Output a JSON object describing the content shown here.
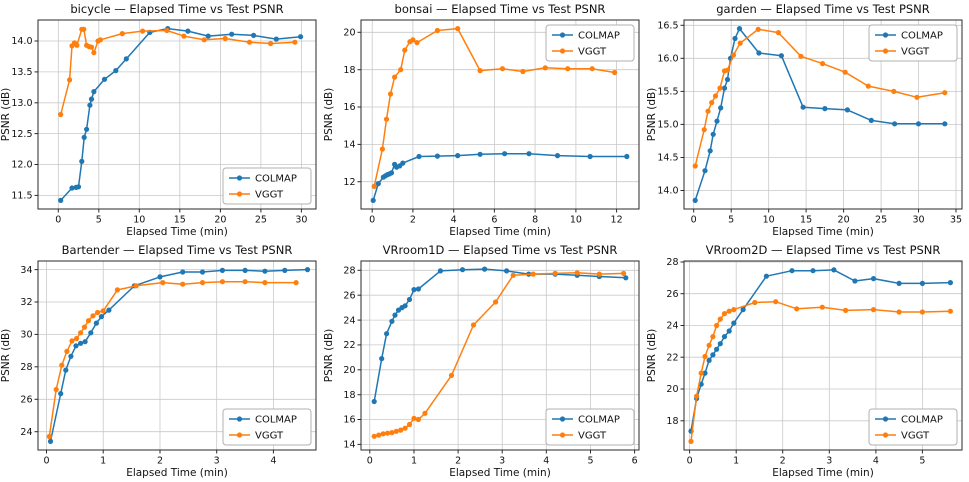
{
  "figure": {
    "background": "#ffffff",
    "grid_color": "#c9c9c9",
    "spine_color": "#2a2a2a",
    "text_color": "#111111",
    "legend_border": "#b0b0b0",
    "legend_bg": "#ffffff",
    "colmap_color": "#1f77b4",
    "vggt_color": "#ff7f0e"
  },
  "chart_data": [
    {
      "type": "line",
      "title": "bicycle — Elapsed Time vs Test PSNR",
      "xlabel": "Elapsed Time (min)",
      "ylabel": "PSNR (dB)",
      "xlim": [
        -2.5,
        31.8
      ],
      "ylim": [
        11.28,
        14.34
      ],
      "xticks": [
        0,
        5,
        10,
        15,
        20,
        25,
        30
      ],
      "xtick_labels": [
        "0",
        "5",
        "10",
        "15",
        "20",
        "25",
        "30"
      ],
      "yticks": [
        11.5,
        12.0,
        12.5,
        13.0,
        13.5,
        14.0
      ],
      "ytick_labels": [
        "11.5",
        "12.0",
        "12.5",
        "13.0",
        "13.5",
        "14.0"
      ],
      "grid": true,
      "legend_position": "lower right",
      "series": [
        {
          "name": "COLMAP",
          "color": "#1f77b4",
          "x": [
            0.3,
            1.7,
            2.2,
            2.5,
            2.9,
            3.2,
            3.5,
            3.9,
            4.1,
            4.4,
            5.7,
            7.1,
            8.4,
            11.3,
            13.5,
            16.0,
            18.5,
            21.4,
            24.1,
            26.9,
            29.9
          ],
          "y": [
            11.42,
            11.62,
            11.63,
            11.64,
            12.05,
            12.44,
            12.57,
            12.96,
            13.06,
            13.18,
            13.38,
            13.52,
            13.71,
            14.14,
            14.2,
            14.16,
            14.08,
            14.11,
            14.09,
            14.03,
            14.07
          ]
        },
        {
          "name": "VGGT",
          "color": "#ff7f0e",
          "x": [
            0.3,
            1.4,
            1.7,
            2.0,
            2.3,
            2.9,
            3.15,
            3.5,
            3.8,
            4.1,
            4.4,
            4.9,
            5.2,
            7.9,
            10.4,
            13.4,
            15.5,
            18.0,
            20.6,
            23.6,
            26.2,
            29.2
          ],
          "y": [
            12.81,
            13.37,
            13.92,
            13.97,
            13.93,
            14.19,
            14.19,
            13.93,
            13.91,
            13.9,
            13.81,
            14.0,
            14.02,
            14.12,
            14.16,
            14.17,
            14.08,
            14.02,
            14.04,
            13.98,
            13.96,
            13.98
          ]
        }
      ]
    },
    {
      "type": "line",
      "title": "bonsai — Elapsed Time vs Test PSNR",
      "xlabel": "Elapsed Time (min)",
      "ylabel": "PSNR (dB)",
      "xlim": [
        -0.55,
        13.1
      ],
      "ylim": [
        10.54,
        20.66
      ],
      "xticks": [
        0,
        2,
        4,
        6,
        8,
        10,
        12
      ],
      "xtick_labels": [
        "0",
        "2",
        "4",
        "6",
        "8",
        "10",
        "12"
      ],
      "yticks": [
        12,
        14,
        16,
        18,
        20
      ],
      "ytick_labels": [
        "12",
        "14",
        "16",
        "18",
        "20"
      ],
      "grid": true,
      "legend_position": "upper right",
      "series": [
        {
          "name": "COLMAP",
          "color": "#1f77b4",
          "x": [
            0.05,
            0.3,
            0.55,
            0.65,
            0.75,
            0.85,
            0.95,
            1.1,
            1.2,
            1.35,
            1.5,
            2.3,
            3.2,
            4.2,
            5.3,
            6.5,
            7.7,
            9.1,
            10.7,
            12.5
          ],
          "y": [
            11.0,
            11.9,
            12.25,
            12.32,
            12.38,
            12.42,
            12.48,
            12.93,
            12.78,
            12.85,
            13.0,
            13.35,
            13.37,
            13.4,
            13.47,
            13.5,
            13.5,
            13.4,
            13.35,
            13.35
          ]
        },
        {
          "name": "VGGT",
          "color": "#ff7f0e",
          "x": [
            0.1,
            0.5,
            0.7,
            0.9,
            1.1,
            1.4,
            1.6,
            1.85,
            2.0,
            2.2,
            3.2,
            4.2,
            5.3,
            6.4,
            7.4,
            8.5,
            9.6,
            10.8,
            11.9
          ],
          "y": [
            11.75,
            13.75,
            15.35,
            16.7,
            17.6,
            18.0,
            19.05,
            19.5,
            19.6,
            19.45,
            20.1,
            20.2,
            17.95,
            18.05,
            17.9,
            18.1,
            18.05,
            18.05,
            17.85
          ]
        }
      ]
    },
    {
      "type": "line",
      "title": "garden — Elapsed Time vs Test PSNR",
      "xlabel": "Elapsed Time (min)",
      "ylabel": "PSNR (dB)",
      "xlim": [
        -1.3,
        35.8
      ],
      "ylim": [
        13.72,
        16.58
      ],
      "xticks": [
        0,
        5,
        10,
        15,
        20,
        25,
        30,
        35
      ],
      "xtick_labels": [
        "0",
        "5",
        "10",
        "15",
        "20",
        "25",
        "30",
        "35"
      ],
      "yticks": [
        14.0,
        14.5,
        15.0,
        15.5,
        16.0,
        16.5
      ],
      "ytick_labels": [
        "14.0",
        "14.5",
        "15.0",
        "15.5",
        "16.0",
        "16.5"
      ],
      "grid": true,
      "legend_position": "upper right",
      "series": [
        {
          "name": "COLMAP",
          "color": "#1f77b4",
          "x": [
            0.2,
            1.5,
            2.2,
            2.6,
            3.1,
            3.6,
            4.1,
            4.5,
            4.9,
            5.5,
            6.1,
            8.7,
            11.7,
            14.6,
            17.5,
            20.5,
            23.7,
            26.8,
            30.0,
            33.5
          ],
          "y": [
            13.85,
            14.3,
            14.6,
            14.85,
            15.05,
            15.25,
            15.55,
            15.68,
            16.0,
            16.3,
            16.45,
            16.08,
            16.04,
            15.26,
            15.24,
            15.22,
            15.06,
            15.01,
            15.01,
            15.01
          ]
        },
        {
          "name": "VGGT",
          "color": "#ff7f0e",
          "x": [
            0.2,
            1.4,
            1.9,
            2.4,
            2.9,
            3.5,
            4.1,
            4.5,
            5.3,
            6.2,
            8.6,
            11.3,
            14.3,
            17.2,
            20.2,
            23.3,
            26.7,
            29.8,
            33.5
          ],
          "y": [
            14.37,
            14.92,
            15.2,
            15.33,
            15.43,
            15.55,
            15.81,
            15.82,
            16.05,
            16.23,
            16.44,
            16.39,
            16.03,
            15.92,
            15.79,
            15.58,
            15.5,
            15.41,
            15.48
          ]
        }
      ]
    },
    {
      "type": "line",
      "title": "Bartender — Elapsed Time vs Test PSNR",
      "xlabel": "Elapsed Time (min)",
      "ylabel": "PSNR (dB)",
      "xlim": [
        -0.15,
        4.75
      ],
      "ylim": [
        22.87,
        34.53
      ],
      "xticks": [
        0,
        1,
        2,
        3,
        4
      ],
      "xtick_labels": [
        "0",
        "1",
        "2",
        "3",
        "4"
      ],
      "yticks": [
        24,
        26,
        28,
        30,
        32,
        34
      ],
      "ytick_labels": [
        "24",
        "26",
        "28",
        "30",
        "32",
        "34"
      ],
      "grid": true,
      "legend_position": "lower right",
      "series": [
        {
          "name": "COLMAP",
          "color": "#1f77b4",
          "x": [
            0.07,
            0.25,
            0.34,
            0.43,
            0.52,
            0.6,
            0.68,
            0.78,
            0.88,
            0.97,
            1.1,
            1.55,
            2.0,
            2.4,
            2.75,
            3.1,
            3.5,
            3.85,
            4.2,
            4.6
          ],
          "y": [
            23.4,
            26.35,
            27.8,
            28.65,
            29.3,
            29.45,
            29.55,
            30.1,
            30.7,
            31.1,
            31.5,
            33.0,
            33.55,
            33.85,
            33.85,
            33.95,
            33.95,
            33.9,
            33.95,
            34.0
          ]
        },
        {
          "name": "VGGT",
          "color": "#ff7f0e",
          "x": [
            0.05,
            0.17,
            0.27,
            0.36,
            0.45,
            0.53,
            0.6,
            0.67,
            0.74,
            0.82,
            0.9,
            1.0,
            1.25,
            1.58,
            2.05,
            2.4,
            2.75,
            3.1,
            3.5,
            3.85,
            4.4
          ],
          "y": [
            23.7,
            26.6,
            28.1,
            28.95,
            29.6,
            29.75,
            30.1,
            30.45,
            30.85,
            31.15,
            31.35,
            31.45,
            32.75,
            33.0,
            33.2,
            33.1,
            33.2,
            33.25,
            33.25,
            33.2,
            33.2
          ]
        }
      ]
    },
    {
      "type": "line",
      "title": "VRroom1D — Elapsed Time vs Test PSNR",
      "xlabel": "Elapsed Time (min)",
      "ylabel": "PSNR (dB)",
      "xlim": [
        -0.2,
        6.1
      ],
      "ylim": [
        13.55,
        28.75
      ],
      "xticks": [
        0,
        1,
        2,
        3,
        4,
        5,
        6
      ],
      "xtick_labels": [
        "0",
        "1",
        "2",
        "3",
        "4",
        "5",
        "6"
      ],
      "yticks": [
        14,
        16,
        18,
        20,
        22,
        24,
        26,
        28
      ],
      "ytick_labels": [
        "14",
        "16",
        "18",
        "20",
        "22",
        "24",
        "26",
        "28"
      ],
      "grid": true,
      "legend_position": "lower right",
      "series": [
        {
          "name": "COLMAP",
          "color": "#1f77b4",
          "x": [
            0.1,
            0.27,
            0.38,
            0.5,
            0.57,
            0.65,
            0.73,
            0.8,
            0.9,
            1.0,
            1.1,
            1.6,
            2.1,
            2.6,
            3.1,
            3.6,
            4.2,
            4.7,
            5.2,
            5.8
          ],
          "y": [
            17.45,
            20.9,
            22.9,
            23.9,
            24.4,
            24.8,
            25.0,
            25.15,
            25.65,
            26.45,
            26.5,
            27.95,
            28.05,
            28.1,
            27.95,
            27.7,
            27.7,
            27.6,
            27.5,
            27.4
          ]
        },
        {
          "name": "VGGT",
          "color": "#ff7f0e",
          "x": [
            0.1,
            0.2,
            0.3,
            0.4,
            0.5,
            0.6,
            0.7,
            0.8,
            0.9,
            1.0,
            1.1,
            1.25,
            1.85,
            2.35,
            2.85,
            3.25,
            3.7,
            4.2,
            4.7,
            5.2,
            5.75
          ],
          "y": [
            14.65,
            14.75,
            14.85,
            14.9,
            14.95,
            15.05,
            15.15,
            15.3,
            15.6,
            16.1,
            16.0,
            16.5,
            19.55,
            23.6,
            25.45,
            27.6,
            27.7,
            27.75,
            27.8,
            27.7,
            27.75
          ]
        }
      ]
    },
    {
      "type": "line",
      "title": "VRroom2D — Elapsed Time vs Test PSNR",
      "xlabel": "Elapsed Time (min)",
      "ylabel": "PSNR (dB)",
      "xlim": [
        -0.12,
        5.85
      ],
      "ylim": [
        16.16,
        28.06
      ],
      "xticks": [
        0,
        1,
        2,
        3,
        4,
        5
      ],
      "xtick_labels": [
        "0",
        "1",
        "2",
        "3",
        "4",
        "5"
      ],
      "yticks": [
        18,
        20,
        22,
        24,
        26,
        28
      ],
      "ytick_labels": [
        "18",
        "20",
        "22",
        "24",
        "26",
        "28"
      ],
      "grid": true,
      "legend_position": "lower right",
      "series": [
        {
          "name": "COLMAP",
          "color": "#1f77b4",
          "x": [
            0.03,
            0.15,
            0.25,
            0.33,
            0.42,
            0.5,
            0.58,
            0.66,
            0.75,
            0.85,
            0.95,
            1.15,
            1.65,
            2.2,
            2.65,
            3.1,
            3.55,
            3.95,
            4.5,
            5.0,
            5.6
          ],
          "y": [
            17.35,
            19.4,
            20.3,
            21.0,
            21.8,
            22.15,
            22.5,
            22.85,
            23.3,
            23.65,
            24.15,
            25.0,
            27.1,
            27.45,
            27.45,
            27.5,
            26.8,
            26.95,
            26.65,
            26.65,
            26.7
          ]
        },
        {
          "name": "VGGT",
          "color": "#ff7f0e",
          "x": [
            0.03,
            0.15,
            0.25,
            0.33,
            0.42,
            0.5,
            0.58,
            0.66,
            0.75,
            0.85,
            0.95,
            1.4,
            1.85,
            2.3,
            2.85,
            3.35,
            3.95,
            4.5,
            5.0,
            5.6
          ],
          "y": [
            16.7,
            19.55,
            21.0,
            22.05,
            22.75,
            23.3,
            24.0,
            24.4,
            24.75,
            24.9,
            25.0,
            25.45,
            25.5,
            25.05,
            25.15,
            24.95,
            25.0,
            24.85,
            24.85,
            24.9
          ]
        }
      ]
    }
  ]
}
